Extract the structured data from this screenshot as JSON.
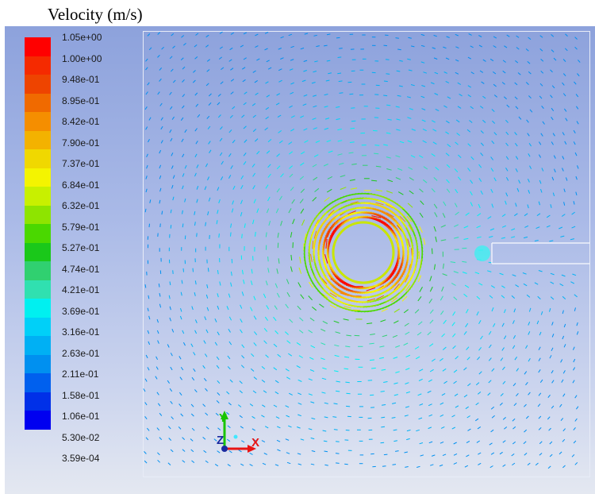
{
  "title": "Velocity (m/s)",
  "legend": {
    "labels": [
      "1.05e+00",
      "1.00e+00",
      "9.48e-01",
      "8.95e-01",
      "8.42e-01",
      "7.90e-01",
      "7.37e-01",
      "6.84e-01",
      "6.32e-01",
      "5.79e-01",
      "5.27e-01",
      "4.74e-01",
      "4.21e-01",
      "3.69e-01",
      "3.16e-01",
      "2.63e-01",
      "2.11e-01",
      "1.58e-01",
      "1.06e-01",
      "5.30e-02",
      "3.59e-04"
    ],
    "colors": [
      "#ff0000",
      "#f52a00",
      "#ee4400",
      "#f06a00",
      "#f58e00",
      "#f3b200",
      "#f0d800",
      "#f4f400",
      "#c8f000",
      "#8ee400",
      "#4ad800",
      "#1ac81a",
      "#30d070",
      "#30e0b0",
      "#00f0f0",
      "#00d0f8",
      "#00b0f4",
      "#0090f0",
      "#0060ee",
      "#0030e8",
      "#0000f0"
    ]
  },
  "triad": {
    "x": "X",
    "y": "Y",
    "z": "Z"
  }
}
